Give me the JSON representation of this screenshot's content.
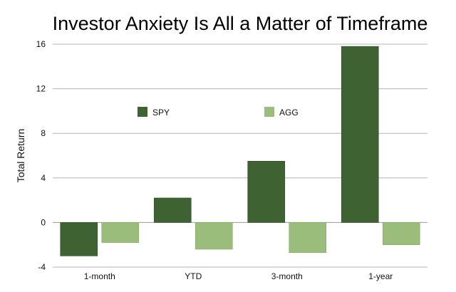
{
  "chart_data": {
    "type": "bar",
    "title": "Investor Anxiety Is All a Matter of Timeframe",
    "xlabel": "",
    "ylabel": "Total Return",
    "categories": [
      "1-month",
      "YTD",
      "3-month",
      "1-year"
    ],
    "series": [
      {
        "name": "SPY",
        "color": "#3f6232",
        "values": [
          -3.0,
          2.2,
          5.5,
          15.8
        ]
      },
      {
        "name": "AGG",
        "color": "#9bbd7c",
        "values": [
          -1.8,
          -2.4,
          -2.7,
          -2.0
        ]
      }
    ],
    "ylim": [
      -4,
      16
    ],
    "yticks": [
      -4,
      0,
      4,
      8,
      12,
      16
    ],
    "grid": true,
    "legend_position": "top-center"
  }
}
